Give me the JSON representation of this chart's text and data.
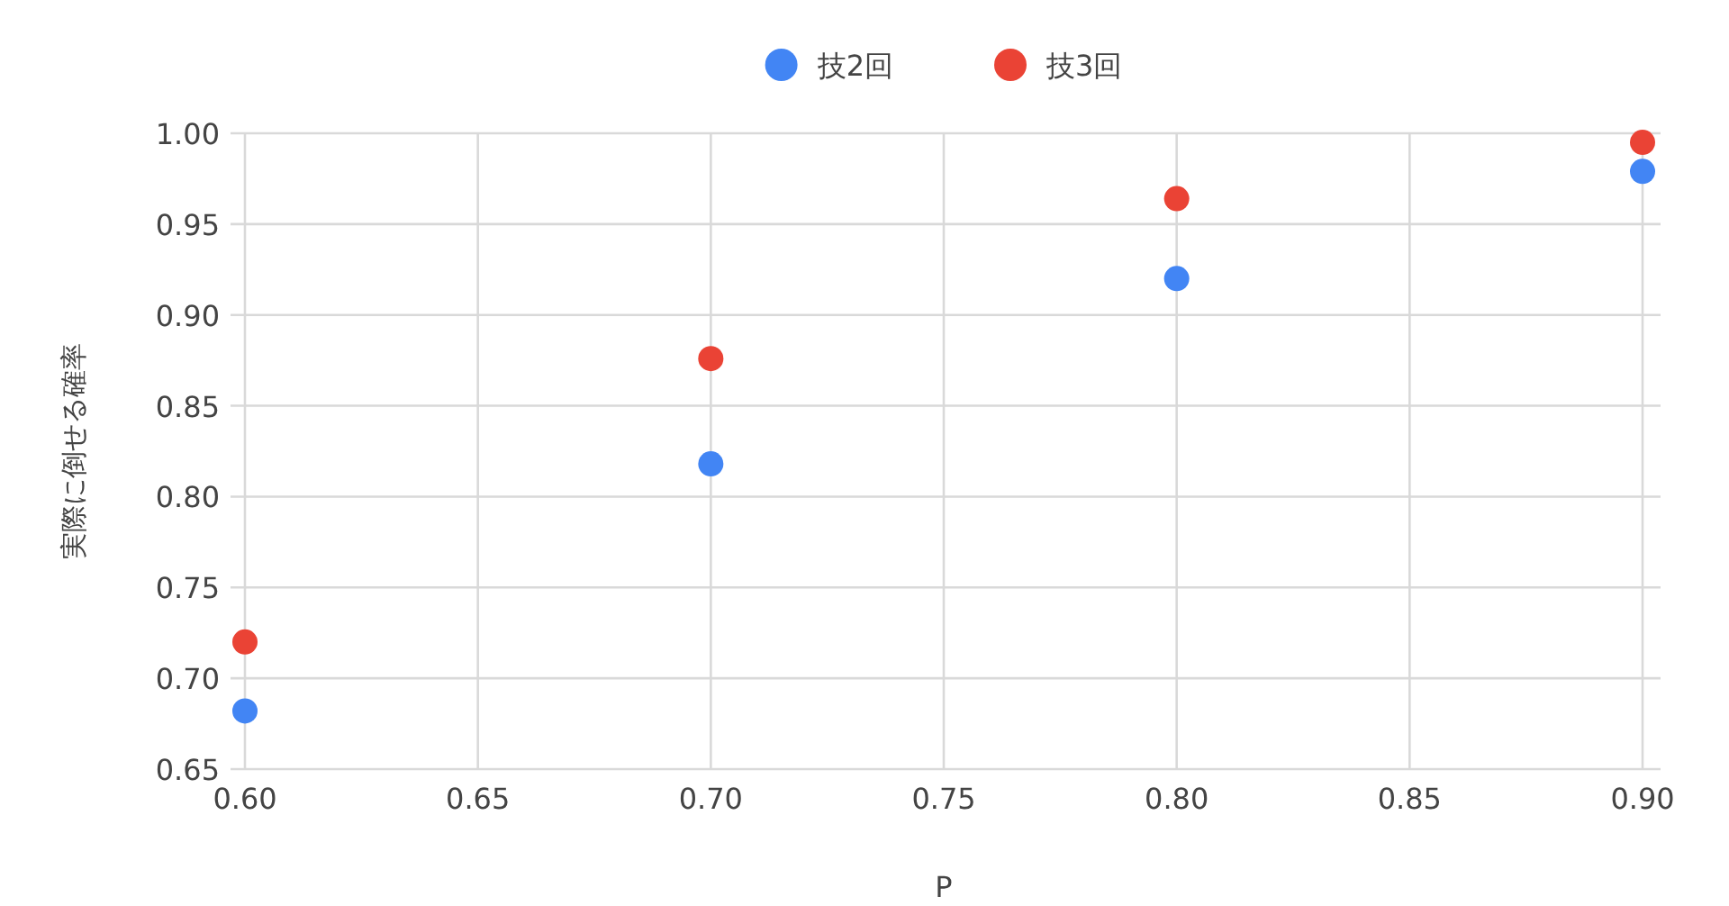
{
  "chart_data": {
    "type": "scatter",
    "xlabel": "P",
    "ylabel": "実際に倒せる確率",
    "x": [
      0.6,
      0.7,
      0.8,
      0.9
    ],
    "series": [
      {
        "name": "技2回",
        "color": "#4285f4",
        "values": [
          0.682,
          0.818,
          0.92,
          0.979
        ]
      },
      {
        "name": "技3回",
        "color": "#ea4335",
        "values": [
          0.72,
          0.876,
          0.964,
          0.995
        ]
      }
    ],
    "xlim": [
      0.6,
      0.9
    ],
    "xticks": [
      {
        "value": 0.6,
        "label": "0.60"
      },
      {
        "value": 0.65,
        "label": "0.65"
      },
      {
        "value": 0.7,
        "label": "0.70"
      },
      {
        "value": 0.75,
        "label": "0.75"
      },
      {
        "value": 0.8,
        "label": "0.80"
      },
      {
        "value": 0.85,
        "label": "0.85"
      },
      {
        "value": 0.9,
        "label": "0.90"
      }
    ],
    "ylim": [
      0.65,
      1.0
    ],
    "yticks": [
      {
        "value": 0.65,
        "label": "0.65"
      },
      {
        "value": 0.7,
        "label": "0.70"
      },
      {
        "value": 0.75,
        "label": "0.75"
      },
      {
        "value": 0.8,
        "label": "0.80"
      },
      {
        "value": 0.85,
        "label": "0.85"
      },
      {
        "value": 0.9,
        "label": "0.90"
      },
      {
        "value": 0.95,
        "label": "0.95"
      },
      {
        "value": 1.0,
        "label": "1.00"
      }
    ],
    "grid": true,
    "legend": "top",
    "marker": "circle"
  }
}
